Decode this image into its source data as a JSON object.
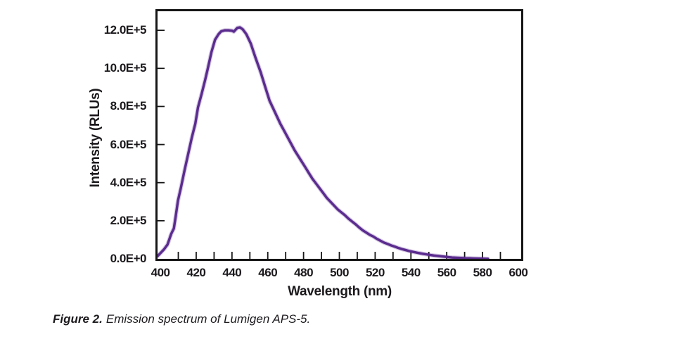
{
  "figure": {
    "caption_label": "Figure 2.",
    "caption_text": "Emission spectrum of Lumigen APS-5."
  },
  "chart_data": {
    "type": "line",
    "title": "",
    "xlabel": "Wavelength (nm)",
    "ylabel": "Intensity (RLUs)",
    "xlim": [
      398.4,
      601.6
    ],
    "ylim": [
      0,
      1300000
    ],
    "grid": false,
    "legend": "none",
    "line_color": "#5b2c8f",
    "frame_color": "#161616",
    "x_axis": {
      "tick_labels": [
        {
          "value": 400,
          "label": "400"
        },
        {
          "value": 420,
          "label": "420"
        },
        {
          "value": 440,
          "label": "440"
        },
        {
          "value": 460,
          "label": "460"
        },
        {
          "value": 480,
          "label": "480"
        },
        {
          "value": 500,
          "label": "500"
        },
        {
          "value": 520,
          "label": "520"
        },
        {
          "value": 540,
          "label": "540"
        },
        {
          "value": 560,
          "label": "560"
        },
        {
          "value": 580,
          "label": "580"
        },
        {
          "value": 600,
          "label": "600"
        }
      ],
      "tick_marks": [
        410,
        420,
        430,
        440,
        450,
        460,
        470,
        480,
        490,
        500,
        510,
        520,
        530,
        540,
        550,
        560,
        570,
        580,
        590
      ]
    },
    "y_axis": {
      "tick_labels": [
        {
          "value": 0,
          "label": "0.0E+0"
        },
        {
          "value": 200000,
          "label": "2.0E+5"
        },
        {
          "value": 400000,
          "label": "4.0E+5"
        },
        {
          "value": 600000,
          "label": "6.0E+5"
        },
        {
          "value": 800000,
          "label": "8.0E+5"
        },
        {
          "value": 1000000,
          "label": "10.0E+5"
        },
        {
          "value": 1200000,
          "label": "12.0E+5"
        }
      ],
      "tick_marks": [
        200000,
        400000,
        600000,
        800000,
        1000000,
        1200000
      ]
    },
    "series": [
      {
        "name": "Lumigen APS-5 emission",
        "peak_wavelength_nm": 444,
        "peak_intensity": 1215000,
        "points": [
          [
            398.5,
            15000
          ],
          [
            400,
            30000
          ],
          [
            402,
            50000
          ],
          [
            404,
            75000
          ],
          [
            406,
            130000
          ],
          [
            407.5,
            160000
          ],
          [
            408.5,
            220000
          ],
          [
            409.8,
            305000
          ],
          [
            411.5,
            375000
          ],
          [
            413.5,
            465000
          ],
          [
            415.5,
            550000
          ],
          [
            417.5,
            635000
          ],
          [
            419.5,
            710000
          ],
          [
            421,
            795000
          ],
          [
            423,
            865000
          ],
          [
            425,
            940000
          ],
          [
            426.5,
            1000000
          ],
          [
            428.5,
            1085000
          ],
          [
            430.5,
            1150000
          ],
          [
            432.5,
            1180000
          ],
          [
            434,
            1195000
          ],
          [
            436,
            1200000
          ],
          [
            438,
            1200000
          ],
          [
            440,
            1198000
          ],
          [
            441,
            1193000
          ],
          [
            443,
            1213000
          ],
          [
            444.5,
            1215000
          ],
          [
            446,
            1205000
          ],
          [
            448,
            1180000
          ],
          [
            450.5,
            1130000
          ],
          [
            453,
            1060000
          ],
          [
            456,
            980000
          ],
          [
            458.5,
            905000
          ],
          [
            461,
            830000
          ],
          [
            463,
            790000
          ],
          [
            465,
            750000
          ],
          [
            467,
            710000
          ],
          [
            469,
            675000
          ],
          [
            471,
            640000
          ],
          [
            473,
            605000
          ],
          [
            475,
            570000
          ],
          [
            477,
            540000
          ],
          [
            479,
            510000
          ],
          [
            481,
            480000
          ],
          [
            483,
            450000
          ],
          [
            485,
            420000
          ],
          [
            487,
            395000
          ],
          [
            489,
            370000
          ],
          [
            491,
            345000
          ],
          [
            493,
            320000
          ],
          [
            495,
            300000
          ],
          [
            497,
            280000
          ],
          [
            499,
            260000
          ],
          [
            501,
            245000
          ],
          [
            503,
            230000
          ],
          [
            505,
            212000
          ],
          [
            507,
            197000
          ],
          [
            509,
            182000
          ],
          [
            511,
            165000
          ],
          [
            513,
            150000
          ],
          [
            515,
            138000
          ],
          [
            517,
            126000
          ],
          [
            519,
            117000
          ],
          [
            521,
            105000
          ],
          [
            523,
            95000
          ],
          [
            525,
            85000
          ],
          [
            527,
            78000
          ],
          [
            529,
            70000
          ],
          [
            531,
            64000
          ],
          [
            533,
            57000
          ],
          [
            535,
            51000
          ],
          [
            537,
            46000
          ],
          [
            539,
            41000
          ],
          [
            541,
            37000
          ],
          [
            543,
            33000
          ],
          [
            545,
            29000
          ],
          [
            547,
            26000
          ],
          [
            549,
            23000
          ],
          [
            551,
            20000
          ],
          [
            553,
            17000
          ],
          [
            555,
            15000
          ],
          [
            557,
            13000
          ],
          [
            559,
            11000
          ],
          [
            561,
            9000
          ],
          [
            563,
            7000
          ],
          [
            565,
            6000
          ],
          [
            567,
            5000
          ],
          [
            569,
            4000
          ],
          [
            571,
            3000
          ],
          [
            573,
            2500
          ],
          [
            575,
            2000
          ],
          [
            577,
            1500
          ],
          [
            579,
            1000
          ],
          [
            581,
            500
          ],
          [
            583,
            0
          ]
        ]
      }
    ]
  }
}
